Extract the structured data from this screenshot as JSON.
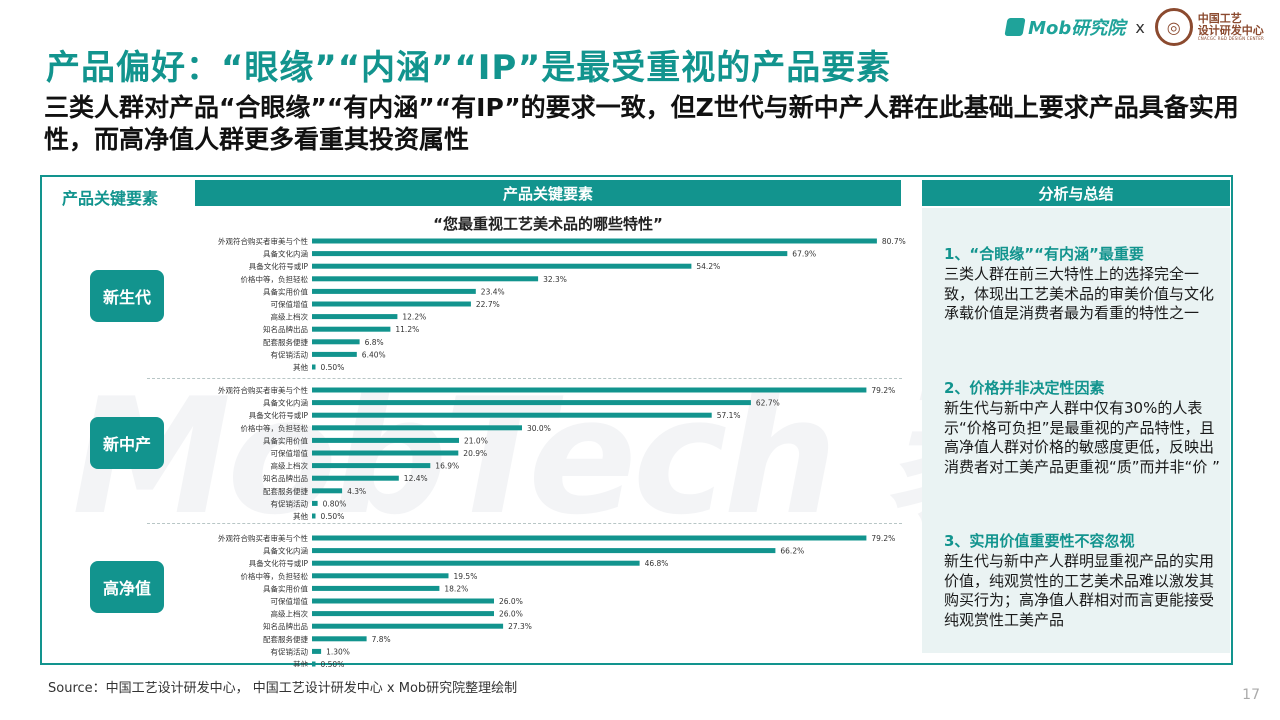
{
  "header": {
    "logo_mob": "Mob研究院",
    "logo_cross": "x",
    "logo_cn_line1": "中国工艺",
    "logo_cn_line2": "设计研发中心",
    "logo_cn_line3": "CNACGC R&D DESIGN CENTER"
  },
  "title": "产品偏好：“眼缘”“内涵”“IP”是最受重视的产品要素",
  "subtitle": "三类人群对产品“合眼缘”“有内涵”“有IP”的要求一致，但Z世代与新中产人群在此基础上要求产品具备实用性，而高净值人群更多看重其投资属性",
  "panel": {
    "left_label": "产品关键要素",
    "chart_header": "产品关键要素",
    "analysis_header": "分析与总结",
    "watermark": "MobTech 袤博"
  },
  "groups": [
    "新生代",
    "新中产",
    "高净值"
  ],
  "chart_data": {
    "type": "bar",
    "orientation": "horizontal",
    "title": "“您最重视工艺美术品的哪些特性”",
    "unit": "%",
    "categories": [
      "外观符合购买者审美与个性",
      "具备文化内涵",
      "具备文化符号或IP",
      "价格中等，负担轻松",
      "具备实用价值",
      "可保值增值",
      "高级上档次",
      "知名品牌出品",
      "配套服务便捷",
      "有促销活动",
      "其他"
    ],
    "series": [
      {
        "name": "新生代",
        "values": [
          80.7,
          67.9,
          54.2,
          32.3,
          23.4,
          22.7,
          12.2,
          11.2,
          6.8,
          6.4,
          0.5
        ],
        "labels": [
          "80.7%",
          "67.9%",
          "54.2%",
          "32.3%",
          "23.4%",
          "22.7%",
          "12.2%",
          "11.2%",
          "6.8%",
          "6.40%",
          "0.50%"
        ]
      },
      {
        "name": "新中产",
        "values": [
          79.2,
          62.7,
          57.1,
          30.0,
          21.0,
          20.9,
          16.9,
          12.4,
          4.3,
          0.8,
          0.5
        ],
        "labels": [
          "79.2%",
          "62.7%",
          "57.1%",
          "30.0%",
          "21.0%",
          "20.9%",
          "16.9%",
          "12.4%",
          "4.3%",
          "0.80%",
          "0.50%"
        ]
      },
      {
        "name": "高净值",
        "values": [
          79.2,
          66.2,
          46.8,
          19.5,
          18.2,
          26.0,
          26.0,
          27.3,
          7.8,
          1.3,
          0.5
        ],
        "labels": [
          "79.2%",
          "66.2%",
          "46.8%",
          "19.5%",
          "18.2%",
          "26.0%",
          "26.0%",
          "27.3%",
          "7.8%",
          "1.30%",
          "0.50%"
        ]
      }
    ],
    "xlim": [
      0,
      100
    ],
    "grid": false,
    "bar_color": "#12948e"
  },
  "analysis": [
    {
      "title": "1、“合眼缘”“有内涵”最重要",
      "body": "三类人群在前三大特性上的选择完全一致，体现出工艺美术品的审美价值与文化承载价值是消费者最为看重的特性之一"
    },
    {
      "title": "2、价格并非决定性因素",
      "body": "新生代与新中产人群中仅有30%的人表示“价格可负担”是最重视的产品特性，且高净值人群对价格的敏感度更低，反映出消费者对工美产品更重视“质”而并非“价 ”"
    },
    {
      "title": "3、实用价值重要性不容忽视",
      "body": "新生代与新中产人群明显重视产品的实用价值，纯观赏性的工艺美术品难以激发其购买行为；高净值人群相对而言更能接受纯观赏性工美产品"
    }
  ],
  "footer": {
    "source": "Source：中国工艺设计研发中心， 中国工艺设计研发中心 x Mob研究院整理绘制",
    "page": "17"
  },
  "colors": {
    "accent": "#12948e",
    "analysis_bg": "#eaf3f3"
  }
}
